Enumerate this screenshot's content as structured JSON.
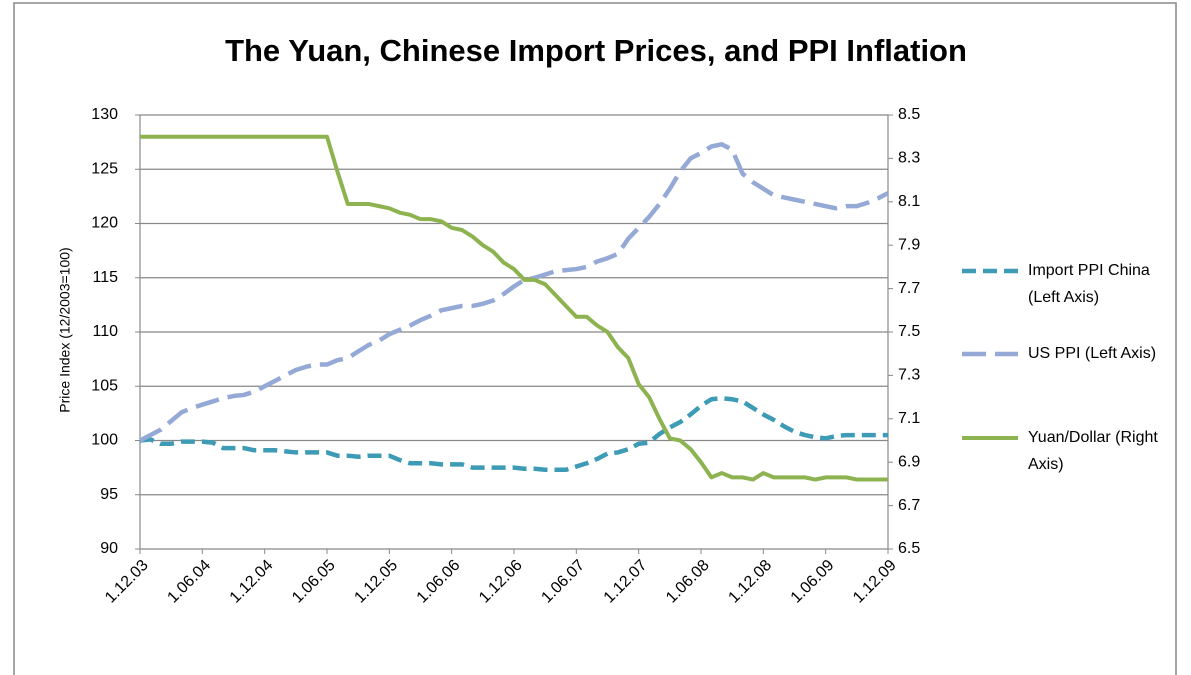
{
  "chart_data": {
    "type": "line",
    "title": "The Yuan, Chinese Import Prices,  and PPI Inflation",
    "y_label": "Price Index (12/2003=100)",
    "categories": [
      "1.12.03",
      null,
      null,
      null,
      null,
      null,
      "1.06.04",
      null,
      null,
      null,
      null,
      null,
      "1.12.04",
      null,
      null,
      null,
      null,
      null,
      "1.06.05",
      null,
      null,
      null,
      null,
      null,
      "1.12.05",
      null,
      null,
      null,
      null,
      null,
      "1.06.06",
      null,
      null,
      null,
      null,
      null,
      "1.12.06",
      null,
      null,
      null,
      null,
      null,
      "1.06.07",
      null,
      null,
      null,
      null,
      null,
      "1.12.07",
      null,
      null,
      null,
      null,
      null,
      "1.06.08",
      null,
      null,
      null,
      null,
      null,
      "1.12.08",
      null,
      null,
      null,
      null,
      null,
      "1.06.09",
      null,
      null,
      null,
      null,
      null,
      "1.12.09"
    ],
    "ylim": [
      90,
      130
    ],
    "yticks": [
      90,
      95,
      100,
      105,
      110,
      115,
      120,
      125,
      130
    ],
    "y2lim": [
      6.5,
      8.5
    ],
    "y2ticks": [
      6.5,
      6.7,
      6.9,
      7.1,
      7.3,
      7.5,
      7.7,
      7.9,
      8.1,
      8.3,
      8.5
    ],
    "grid": true,
    "legend": "right",
    "series": [
      {
        "name": "Import PPI China (Left Axis)",
        "color": "#3e9bb5",
        "dash": "dashed",
        "values": [
          100,
          100.1,
          99.7,
          99.7,
          99.9,
          99.9,
          99.9,
          99.8,
          99.3,
          99.3,
          99.3,
          99.1,
          99.1,
          99.1,
          99,
          98.9,
          98.9,
          98.9,
          98.9,
          98.6,
          98.6,
          98.5,
          98.6,
          98.6,
          98.6,
          98.2,
          97.9,
          97.9,
          97.9,
          97.8,
          97.8,
          97.8,
          97.5,
          97.5,
          97.5,
          97.5,
          97.5,
          97.4,
          97.4,
          97.3,
          97.3,
          97.3,
          97.6,
          97.9,
          98.3,
          98.8,
          98.9,
          99.2,
          99.7,
          99.8,
          100.6,
          101.2,
          101.7,
          102.4,
          103.2,
          103.8,
          103.9,
          103.8,
          103.6,
          103.0,
          102.4,
          101.9,
          101.3,
          100.8,
          100.5,
          100.3,
          100.2,
          100.4,
          100.5,
          100.5,
          100.5,
          100.5,
          100.5
        ]
      },
      {
        "name": "US PPI (Left Axis)",
        "color": "#95a9d6",
        "dash": "dashed",
        "values": [
          100,
          100.5,
          101,
          101.8,
          102.6,
          103,
          103.3,
          103.6,
          103.9,
          104.1,
          104.2,
          104.5,
          105,
          105.5,
          106,
          106.5,
          106.8,
          107,
          107,
          107.4,
          107.6,
          108.2,
          108.8,
          109.2,
          109.8,
          110.2,
          110.6,
          111.1,
          111.5,
          112,
          112.2,
          112.4,
          112.4,
          112.6,
          112.9,
          113.5,
          114.2,
          114.8,
          115,
          115.3,
          115.6,
          115.7,
          115.8,
          116,
          116.5,
          116.8,
          117.2,
          118.6,
          119.6,
          120.6,
          121.8,
          123.2,
          124.8,
          126,
          126.5,
          127.1,
          127.3,
          126.8,
          124.6,
          123.8,
          123.2,
          122.6,
          122.4,
          122.2,
          122,
          121.8,
          121.6,
          121.4,
          121.6,
          121.6,
          121.9,
          122.3,
          122.8
        ]
      },
      {
        "name": "Yuan/Dollar (Right Axis)",
        "color": "#8db350",
        "dash": "solid",
        "axis": "y2",
        "values": [
          8.4,
          8.4,
          8.4,
          8.4,
          8.4,
          8.4,
          8.4,
          8.4,
          8.4,
          8.4,
          8.4,
          8.4,
          8.4,
          8.4,
          8.4,
          8.4,
          8.4,
          8.4,
          8.4,
          8.24,
          8.09,
          8.09,
          8.09,
          8.08,
          8.07,
          8.05,
          8.04,
          8.02,
          8.02,
          8.01,
          7.98,
          7.97,
          7.94,
          7.9,
          7.87,
          7.82,
          7.79,
          7.74,
          7.74,
          7.72,
          7.67,
          7.62,
          7.57,
          7.57,
          7.53,
          7.5,
          7.43,
          7.38,
          7.26,
          7.2,
          7.1,
          7.01,
          7.0,
          6.96,
          6.9,
          6.83,
          6.85,
          6.83,
          6.83,
          6.82,
          6.85,
          6.83,
          6.83,
          6.83,
          6.83,
          6.82,
          6.83,
          6.83,
          6.83,
          6.82,
          6.82,
          6.82,
          6.82
        ]
      }
    ]
  }
}
